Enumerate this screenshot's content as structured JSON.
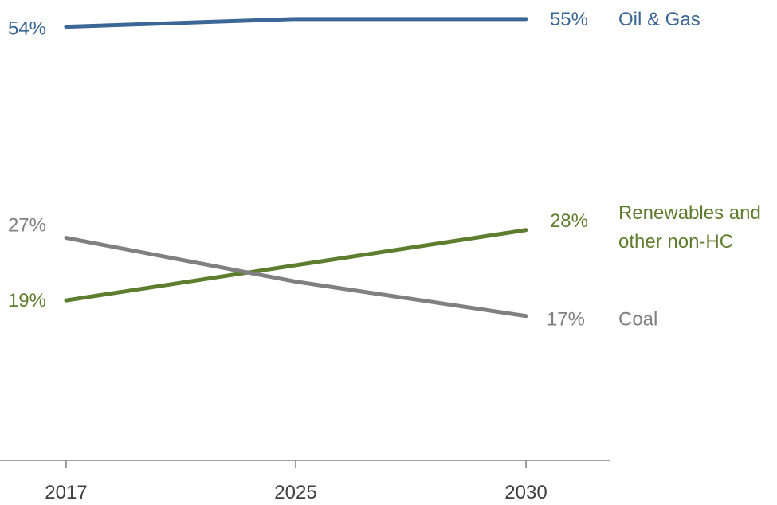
{
  "chart_data": {
    "type": "line",
    "x": [
      "2017",
      "2025",
      "2030"
    ],
    "series": [
      {
        "name": "Oil & Gas",
        "values": [
          54,
          55,
          55
        ],
        "color": "#3a6795",
        "start_label": "54%",
        "end_label": "55%"
      },
      {
        "name": "Renewables and other non-HC",
        "name_lines": [
          "Renewables and",
          "other non-HC"
        ],
        "values": [
          19,
          23.5,
          28
        ],
        "color": "#5e7d2e",
        "start_label": "19%",
        "end_label": "28%"
      },
      {
        "name": "Coal",
        "values": [
          27,
          21.4,
          17
        ],
        "color": "#808080",
        "start_label": "27%",
        "end_label": "17%"
      }
    ],
    "ylim": [
      -3,
      56
    ],
    "grid": false,
    "legend": "right, inline at line ends",
    "axis_color": "#808080",
    "tick_label_color": "#404040"
  }
}
